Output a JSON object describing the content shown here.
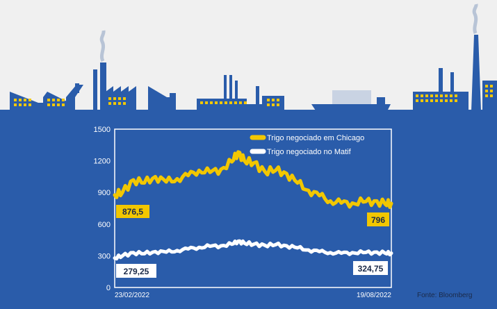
{
  "colors": {
    "background": "#2a5caa",
    "sky": "#f0f0f0",
    "chicago": "#f2c700",
    "matif": "#ffffff",
    "plot_border": "#ffffff",
    "window": "#f2c700"
  },
  "chart_data": {
    "type": "line",
    "title": "",
    "xlabel": "",
    "ylabel": "",
    "ylim": [
      0,
      1500
    ],
    "yticks": [
      "0",
      "300",
      "600",
      "900",
      "1200",
      "1500"
    ],
    "ytick_values": [
      0,
      300,
      600,
      900,
      1200,
      1500
    ],
    "x_range": [
      "23/02/2022",
      "19/08/2022"
    ],
    "x_tick_labels": [
      "23/02/2022",
      "19/08/2022"
    ],
    "grid": false,
    "legend_position": "top-right",
    "source": "Fonte: Bloomberg",
    "series": [
      {
        "name": "Trigo negociado em Chicago",
        "color": "#f2c700",
        "dates": [
          "2022-02-23",
          "2022-02-28",
          "2022-03-07",
          "2022-03-14",
          "2022-03-21",
          "2022-03-28",
          "2022-04-04",
          "2022-04-11",
          "2022-04-18",
          "2022-04-25",
          "2022-05-02",
          "2022-05-09",
          "2022-05-13",
          "2022-05-17",
          "2022-05-23",
          "2022-05-30",
          "2022-06-06",
          "2022-06-13",
          "2022-06-20",
          "2022-06-27",
          "2022-07-04",
          "2022-07-11",
          "2022-07-18",
          "2022-07-25",
          "2022-08-01",
          "2022-08-08",
          "2022-08-15",
          "2022-08-19"
        ],
        "values": [
          876.5,
          900,
          1020,
          990,
          1050,
          1000,
          1030,
          1060,
          1110,
          1090,
          1120,
          1190,
          1284,
          1200,
          1180,
          1100,
          1110,
          1080,
          990,
          920,
          870,
          820,
          800,
          800,
          810,
          820,
          790,
          796
        ],
        "start_label": "876,5",
        "end_label": "796"
      },
      {
        "name": "Trigo negociado no Matif",
        "color": "#ffffff",
        "dates": [
          "2022-02-23",
          "2022-02-28",
          "2022-03-07",
          "2022-03-14",
          "2022-03-21",
          "2022-03-28",
          "2022-04-04",
          "2022-04-11",
          "2022-04-18",
          "2022-04-25",
          "2022-05-02",
          "2022-05-09",
          "2022-05-13",
          "2022-05-17",
          "2022-05-23",
          "2022-05-30",
          "2022-06-06",
          "2022-06-13",
          "2022-06-20",
          "2022-06-27",
          "2022-07-04",
          "2022-07-11",
          "2022-07-18",
          "2022-07-25",
          "2022-08-01",
          "2022-08-08",
          "2022-08-15",
          "2022-08-19"
        ],
        "values": [
          279.25,
          300,
          330,
          320,
          340,
          335,
          350,
          365,
          380,
          390,
          395,
          410,
          438,
          420,
          410,
          400,
          405,
          395,
          375,
          355,
          340,
          330,
          325,
          330,
          330,
          335,
          325,
          324.75
        ],
        "start_label": "279,25",
        "end_label": "324,75"
      }
    ]
  }
}
